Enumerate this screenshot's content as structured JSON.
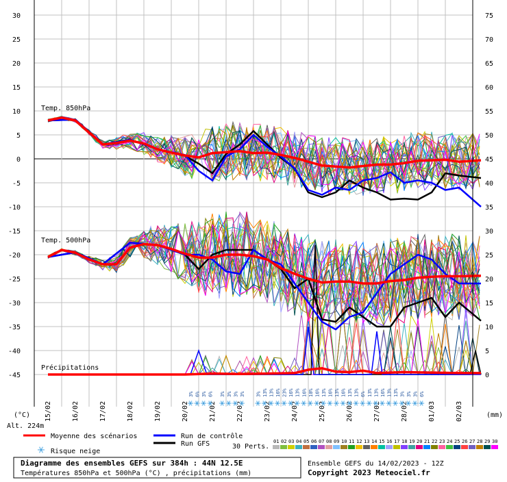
{
  "chart_data": {
    "type": "line",
    "title": "Diagramme des ensembles GEFS sur 384h : 44N 12.5E",
    "subtitle": "Températures 850hPa et 500hPa (°C) , précipitations (mm)",
    "left_axis": {
      "unit": "(°C)",
      "ticks": [
        30,
        25,
        20,
        15,
        10,
        5,
        0,
        -5,
        -10,
        -15,
        -20,
        -25,
        -30,
        -35,
        -40,
        -45
      ],
      "range": [
        -45,
        30
      ]
    },
    "right_axis": {
      "unit": "(mm)",
      "ticks": [
        75,
        70,
        65,
        60,
        55,
        50,
        45,
        40,
        35,
        30,
        25,
        20,
        15,
        10,
        5,
        0
      ],
      "range": [
        0,
        75
      ]
    },
    "dates": [
      "15/02",
      "16/02",
      "17/02",
      "18/02",
      "19/02",
      "20/02",
      "21/02",
      "22/02",
      "23/02",
      "24/02",
      "25/02",
      "26/02",
      "27/02",
      "28/02",
      "01/03",
      "02/03"
    ],
    "altitude": "Alt. 224m",
    "panel_labels": {
      "t850": "Temp. 850hPa",
      "t500": "Temp. 500hPa",
      "precip": "Précipitations"
    },
    "snow_risk": [
      "3%",
      "6%",
      "3%",
      "6%",
      "3%",
      "3%",
      "3%",
      "3%",
      "3%",
      "13%",
      "13%",
      "16%",
      "23%",
      "16%",
      "13%",
      "16%",
      "10%",
      "16%",
      "13%",
      "16%",
      "13%",
      "16%",
      "13%",
      "13%",
      "6%",
      "13%",
      "13%",
      "16%",
      "13%",
      "13%",
      "3%",
      "3%",
      "3%",
      "6%"
    ],
    "series": [
      {
        "name": "Moyenne des scénarios",
        "color": "#ff0000",
        "t850": [
          [
            0,
            8
          ],
          [
            0.5,
            8.6
          ],
          [
            1,
            8
          ],
          [
            1.5,
            5.5
          ],
          [
            2,
            3
          ],
          [
            2.5,
            3.3
          ],
          [
            3,
            3.8
          ],
          [
            3.5,
            3.2
          ],
          [
            4,
            2
          ],
          [
            4.5,
            1.3
          ],
          [
            5,
            0.7
          ],
          [
            5.5,
            0.3
          ],
          [
            6,
            1.2
          ],
          [
            6.5,
            1.4
          ],
          [
            7,
            1.6
          ],
          [
            7.5,
            1.2
          ],
          [
            8,
            1.3
          ],
          [
            8.5,
            0.8
          ],
          [
            9,
            0.2
          ],
          [
            9.5,
            -0.6
          ],
          [
            10,
            -1.4
          ],
          [
            10.5,
            -1.6
          ],
          [
            11,
            -1.8
          ],
          [
            11.5,
            -1.5
          ],
          [
            12,
            -1.2
          ],
          [
            12.5,
            -1.2
          ],
          [
            13,
            -0.9
          ],
          [
            13.5,
            -0.4
          ],
          [
            14,
            -0.3
          ],
          [
            14.5,
            -0.2
          ],
          [
            15,
            -0.6
          ],
          [
            15.8,
            -0.3
          ]
        ],
        "t500": [
          [
            0,
            -20.5
          ],
          [
            0.5,
            -19
          ],
          [
            1,
            -19.6
          ],
          [
            1.5,
            -21
          ],
          [
            2,
            -22
          ],
          [
            2.5,
            -22
          ],
          [
            3,
            -18.5
          ],
          [
            3.5,
            -17.8
          ],
          [
            4,
            -18
          ],
          [
            4.5,
            -18.8
          ],
          [
            5,
            -19.8
          ],
          [
            5.5,
            -20.6
          ],
          [
            6,
            -20.6
          ],
          [
            6.5,
            -20
          ],
          [
            7,
            -20
          ],
          [
            7.5,
            -20.3
          ],
          [
            8,
            -21
          ],
          [
            8.5,
            -22.8
          ],
          [
            9,
            -24
          ],
          [
            9.5,
            -25
          ],
          [
            10,
            -25.8
          ],
          [
            10.5,
            -25.6
          ],
          [
            11,
            -25.6
          ],
          [
            11.5,
            -26
          ],
          [
            12,
            -26
          ],
          [
            12.5,
            -25.5
          ],
          [
            13,
            -25.3
          ],
          [
            13.5,
            -24.8
          ],
          [
            14,
            -24.6
          ],
          [
            14.5,
            -24.5
          ],
          [
            15,
            -24.5
          ],
          [
            15.8,
            -24.4
          ]
        ],
        "precip": [
          [
            0,
            0
          ],
          [
            5,
            0
          ],
          [
            6,
            0.2
          ],
          [
            7,
            0.1
          ],
          [
            8,
            0.2
          ],
          [
            9,
            0.3
          ],
          [
            9.5,
            1
          ],
          [
            10,
            1.3
          ],
          [
            10.5,
            0.6
          ],
          [
            11,
            0.5
          ],
          [
            11.5,
            0.8
          ],
          [
            12,
            0.3
          ],
          [
            13,
            0.5
          ],
          [
            14,
            0.4
          ],
          [
            15,
            0.3
          ],
          [
            15.8,
            0.3
          ]
        ]
      },
      {
        "name": "Run de contrôle",
        "color": "#0000ff",
        "t850": [
          [
            0,
            8
          ],
          [
            1,
            8.2
          ],
          [
            2,
            3
          ],
          [
            3,
            4
          ],
          [
            4,
            2
          ],
          [
            5,
            0.8
          ],
          [
            5.5,
            -2.5
          ],
          [
            6,
            -4.5
          ],
          [
            6.5,
            0.5
          ],
          [
            7,
            2
          ],
          [
            7.5,
            5
          ],
          [
            8,
            2.5
          ],
          [
            8.5,
            0.5
          ],
          [
            9,
            -2
          ],
          [
            9.5,
            -6.5
          ],
          [
            10,
            -7.5
          ],
          [
            10.5,
            -6
          ],
          [
            11,
            -6.5
          ],
          [
            11.5,
            -4.5
          ],
          [
            12,
            -4
          ],
          [
            12.5,
            -2.8
          ],
          [
            13,
            -5
          ],
          [
            13.5,
            -4.5
          ],
          [
            14,
            -5
          ],
          [
            14.5,
            -6.5
          ],
          [
            15,
            -6
          ],
          [
            15.8,
            -10
          ]
        ],
        "t500": [
          [
            0,
            -20.5
          ],
          [
            1,
            -19.5
          ],
          [
            2,
            -22
          ],
          [
            3,
            -17.5
          ],
          [
            4,
            -18
          ],
          [
            5,
            -20
          ],
          [
            5.5,
            -20
          ],
          [
            6,
            -21
          ],
          [
            6.5,
            -23.5
          ],
          [
            7,
            -24
          ],
          [
            7.5,
            -19
          ],
          [
            8,
            -21
          ],
          [
            8.5,
            -22
          ],
          [
            9,
            -26
          ],
          [
            9.5,
            -30
          ],
          [
            10,
            -34
          ],
          [
            10.5,
            -35.6
          ],
          [
            11,
            -33
          ],
          [
            11.5,
            -32
          ],
          [
            12,
            -28
          ],
          [
            12.5,
            -24
          ],
          [
            13,
            -22
          ],
          [
            13.5,
            -20
          ],
          [
            14,
            -21
          ],
          [
            14.5,
            -24
          ],
          [
            15,
            -26
          ],
          [
            15.8,
            -26
          ]
        ],
        "precip": [
          [
            0,
            0
          ],
          [
            5.2,
            0
          ],
          [
            5.5,
            5
          ],
          [
            5.8,
            0
          ],
          [
            9.3,
            0
          ],
          [
            9.5,
            10
          ],
          [
            9.7,
            0
          ],
          [
            11.8,
            0
          ],
          [
            12,
            9
          ],
          [
            12.2,
            0
          ],
          [
            15.8,
            0
          ]
        ]
      },
      {
        "name": "Run GFS",
        "color": "#000000",
        "t850": [
          [
            0,
            8
          ],
          [
            1,
            8.2
          ],
          [
            2,
            3
          ],
          [
            3,
            4
          ],
          [
            4,
            2
          ],
          [
            5,
            0.6
          ],
          [
            5.5,
            -1
          ],
          [
            6,
            -3
          ],
          [
            6.5,
            1
          ],
          [
            7,
            3
          ],
          [
            7.5,
            5.8
          ],
          [
            8,
            3
          ],
          [
            8.5,
            0.2
          ],
          [
            9,
            -2
          ],
          [
            9.5,
            -7
          ],
          [
            10,
            -8
          ],
          [
            10.5,
            -7
          ],
          [
            11,
            -4.5
          ],
          [
            11.5,
            -6
          ],
          [
            12,
            -7
          ],
          [
            12.5,
            -8.5
          ],
          [
            13,
            -8.3
          ],
          [
            13.5,
            -8.5
          ],
          [
            14,
            -7
          ],
          [
            14.5,
            -3
          ],
          [
            15,
            -3.5
          ],
          [
            15.8,
            -4
          ]
        ],
        "t500": [
          [
            0,
            -20.5
          ],
          [
            1,
            -19.5
          ],
          [
            2,
            -22
          ],
          [
            3,
            -17.5
          ],
          [
            4,
            -18
          ],
          [
            5,
            -20
          ],
          [
            5.5,
            -23
          ],
          [
            6,
            -20
          ],
          [
            6.5,
            -19
          ],
          [
            7,
            -19
          ],
          [
            7.5,
            -19
          ],
          [
            8,
            -21
          ],
          [
            8.5,
            -23
          ],
          [
            9,
            -27
          ],
          [
            9.5,
            -25
          ],
          [
            10,
            -33.5
          ],
          [
            10.5,
            -34
          ],
          [
            11,
            -31
          ],
          [
            11.5,
            -33
          ],
          [
            12,
            -35
          ],
          [
            12.5,
            -35
          ],
          [
            13,
            -31
          ],
          [
            13.5,
            -30
          ],
          [
            14,
            -29
          ],
          [
            14.5,
            -33
          ],
          [
            15,
            -30
          ],
          [
            15.8,
            -33.8
          ]
        ],
        "precip": [
          [
            0,
            0
          ],
          [
            9.6,
            0
          ],
          [
            9.75,
            27
          ],
          [
            9.9,
            0
          ],
          [
            15.4,
            0
          ],
          [
            15.6,
            5
          ],
          [
            15.8,
            0
          ]
        ]
      }
    ],
    "members": [
      "01",
      "02",
      "03",
      "04",
      "05",
      "06",
      "07",
      "08",
      "09",
      "10",
      "11",
      "12",
      "13",
      "14",
      "15",
      "16",
      "17",
      "18",
      "19",
      "20",
      "21",
      "22",
      "23",
      "24",
      "25",
      "26",
      "27",
      "28",
      "29",
      "30"
    ],
    "member_colors": [
      "#b8b8b8",
      "#7fbf3f",
      "#cfcf00",
      "#3cb0c0",
      "#c07040",
      "#3060c0",
      "#b050c0",
      "#e0a0a0",
      "#80c0ff",
      "#a08020",
      "#20a020",
      "#f0c000",
      "#606060",
      "#ff8000",
      "#00c0a0",
      "#a0a0ff",
      "#c0c000",
      "#8040ff",
      "#40a0a0",
      "#e00080",
      "#0080ff",
      "#808000",
      "#ff60a0",
      "#40c040",
      "#004080",
      "#ff4040",
      "#7060c0",
      "#c08000",
      "#005050",
      "#ff00ff"
    ],
    "grid": true
  },
  "legend": {
    "mean_label": "Moyenne des scénarios",
    "control_label": "Run de contrôle",
    "gfs_label": "Run GFS",
    "snow_label": "Risque neige",
    "perts_label": "30 Perts."
  },
  "footer": {
    "title": "Diagramme des ensembles GEFS sur 384h : 44N 12.5E",
    "subtitle": "Températures 850hPa et 500hPa (°C) , précipitations (mm)",
    "ensemble": "Ensemble GEFS du 14/02/2023 - 12Z",
    "copyright": "Copyright 2023 Meteociel.fr"
  },
  "colors": {
    "mean": "#ff0000",
    "control": "#0000ff",
    "gfs": "#000000",
    "grid": "#c0c0c0",
    "snow": "#8ec8ee"
  }
}
